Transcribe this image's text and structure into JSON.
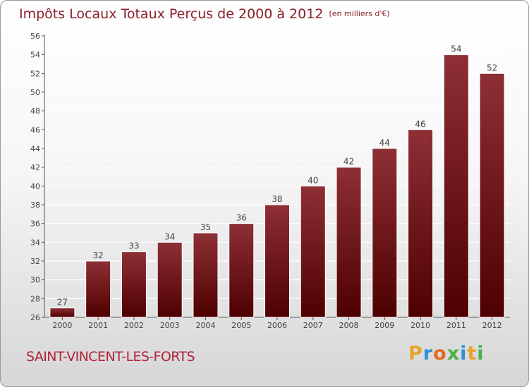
{
  "title": "Impôts Locaux Totaux Perçus de 2000 à 2012",
  "unit": "(en milliers d'€)",
  "town": "SAINT-VINCENT-LES-FORTS",
  "logo": {
    "letters": [
      "P",
      "r",
      "o",
      "x",
      "i",
      "t",
      "i"
    ],
    "colors": [
      "#e8a22a",
      "#2f8fd8",
      "#e46a1e",
      "#4cb04a",
      "#2f8fd8",
      "#e8a22a",
      "#4cb04a"
    ]
  },
  "colors": {
    "bar_top": "#8e2f36",
    "bar_bottom": "#4e0000",
    "grid": "#ffffff",
    "accent": "#8a1f2a"
  },
  "chart_data": {
    "type": "bar",
    "categories": [
      "2000",
      "2001",
      "2002",
      "2003",
      "2004",
      "2005",
      "2006",
      "2007",
      "2008",
      "2009",
      "2010",
      "2011",
      "2012"
    ],
    "values": [
      27,
      32,
      33,
      34,
      35,
      36,
      38,
      40,
      42,
      44,
      46,
      54,
      52
    ],
    "ylim": [
      26,
      56
    ],
    "yticks": [
      "26",
      "28",
      "30",
      "32",
      "34",
      "36",
      "38",
      "40",
      "42",
      "44",
      "46",
      "48",
      "50",
      "52",
      "54",
      "56"
    ],
    "grid": true,
    "xlabel": "",
    "ylabel": ""
  }
}
